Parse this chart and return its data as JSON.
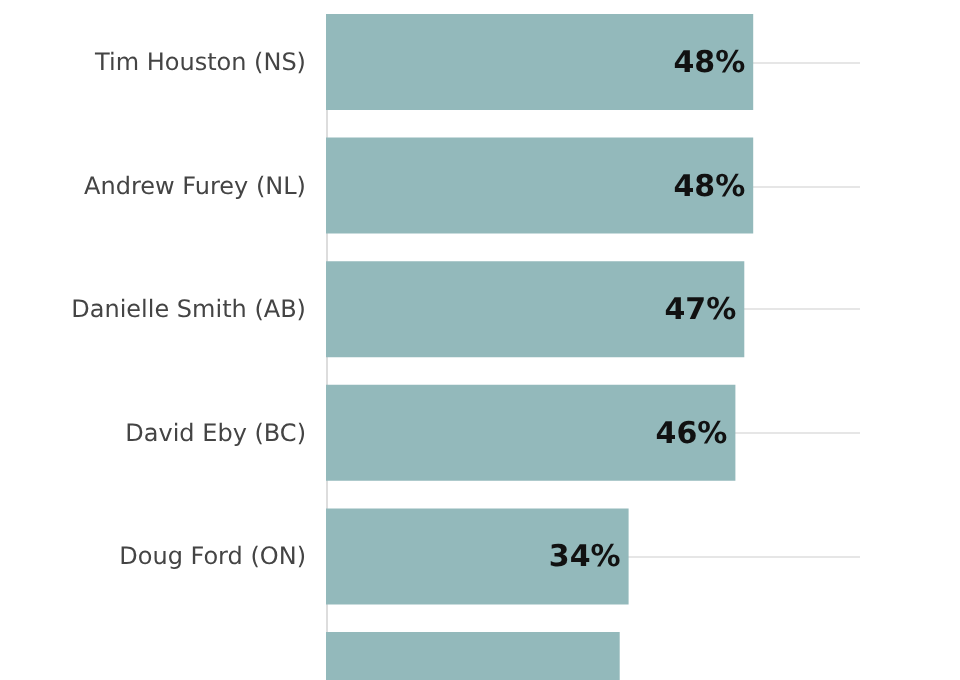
{
  "chart_data": {
    "type": "bar",
    "orientation": "horizontal",
    "categories": [
      "Tim Houston (NS)",
      "Andrew Furey (NL)",
      "Danielle Smith (AB)",
      "David Eby (BC)",
      "Doug Ford (ON)",
      null
    ],
    "values": [
      48,
      48,
      47,
      46,
      34,
      33
    ],
    "value_labels": [
      "48%",
      "48%",
      "47%",
      "46%",
      "34%",
      null
    ],
    "color": "#93b9bb",
    "xlim": [
      0,
      60
    ],
    "tick_labels": "y",
    "grid": "y"
  }
}
